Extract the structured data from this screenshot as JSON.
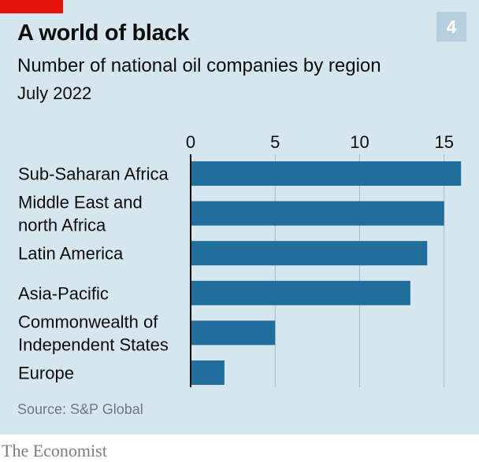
{
  "header": {
    "title": "A world of black",
    "subtitle": "Number of national oil companies by region",
    "date": "July 2022",
    "chart_number": "4"
  },
  "footer": {
    "source": "Source: S&P Global",
    "brand": "The Economist"
  },
  "colors": {
    "background": "#d6e6ef",
    "bar": "#1f6e9c",
    "accent_red": "#e3120b",
    "number_box": "#b6cfde"
  },
  "chart_data": {
    "type": "bar",
    "orientation": "horizontal",
    "title": "A world of black",
    "subtitle": "Number of national oil companies by region",
    "xlabel": "",
    "ylabel": "",
    "categories": [
      [
        "Sub-Saharan Africa"
      ],
      [
        "Middle East and",
        "north Africa"
      ],
      [
        "Latin America"
      ],
      [
        "Asia-Pacific"
      ],
      [
        "Commonwealth of",
        "Independent States"
      ],
      [
        "Europe"
      ]
    ],
    "values": [
      16,
      15,
      14,
      13,
      5,
      2
    ],
    "xlim": [
      0,
      16
    ],
    "xticks": [
      0,
      5,
      10,
      15
    ],
    "tick_position": "top",
    "grid": true
  }
}
